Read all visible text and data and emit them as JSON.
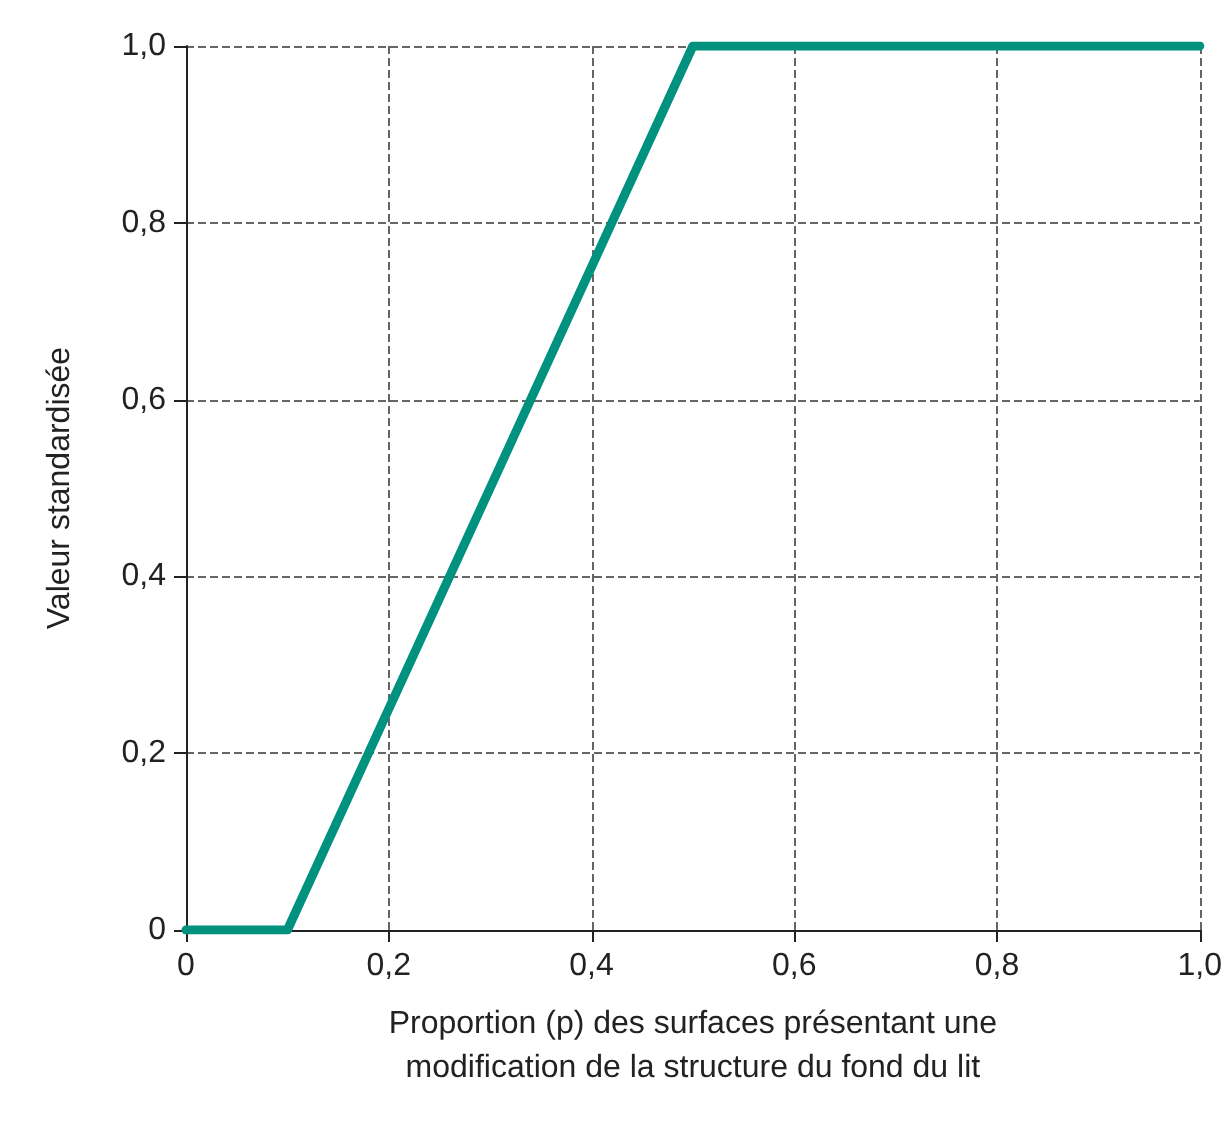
{
  "chart_data": {
    "type": "line",
    "xlabel": "Proportion (p) des surfaces présentant une modification de la structure du fond du lit",
    "ylabel": "Valeur standardisée",
    "x": [
      0,
      0.1,
      0.5,
      1
    ],
    "series": [
      {
        "color": "#00917f",
        "values": [
          0,
          0,
          1,
          1
        ]
      }
    ],
    "xlim": [
      0,
      1
    ],
    "ylim": [
      0,
      1
    ],
    "xticks": [
      {
        "value": 0,
        "label": "0"
      },
      {
        "value": 0.2,
        "label": "0,2"
      },
      {
        "value": 0.4,
        "label": "0,4"
      },
      {
        "value": 0.6,
        "label": "0,6"
      },
      {
        "value": 0.8,
        "label": "0,8"
      },
      {
        "value": 1,
        "label": "1,0"
      }
    ],
    "yticks": [
      {
        "value": 0,
        "label": "0"
      },
      {
        "value": 0.2,
        "label": "0,2"
      },
      {
        "value": 0.4,
        "label": "0,4"
      },
      {
        "value": 0.6,
        "label": "0,6"
      },
      {
        "value": 0.8,
        "label": "0,8"
      },
      {
        "value": 1,
        "label": "1,0"
      }
    ],
    "grid": true,
    "marker": "none",
    "line_style": "solid"
  }
}
